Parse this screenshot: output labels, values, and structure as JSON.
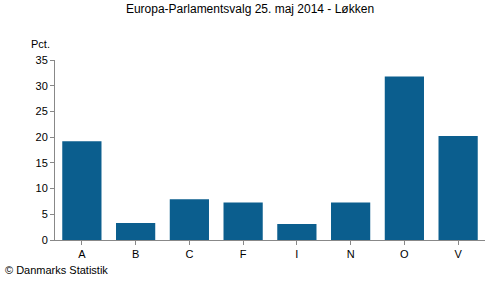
{
  "chart_data": {
    "type": "bar",
    "title": "Europa-Parlamentsvalg 25. maj 2014 - Løkken",
    "ylabel": "Pct.",
    "annotations": [
      "© Danmarks Statistik"
    ],
    "categories": [
      "A",
      "B",
      "C",
      "F",
      "I",
      "N",
      "O",
      "V"
    ],
    "values": [
      19.2,
      3.3,
      7.9,
      7.3,
      3.1,
      7.3,
      31.8,
      20.2
    ],
    "color": "#0b5e8e",
    "ylim": [
      0,
      35
    ],
    "yticks": [
      0,
      5,
      10,
      15,
      20,
      25,
      30,
      35
    ],
    "grid": false
  }
}
